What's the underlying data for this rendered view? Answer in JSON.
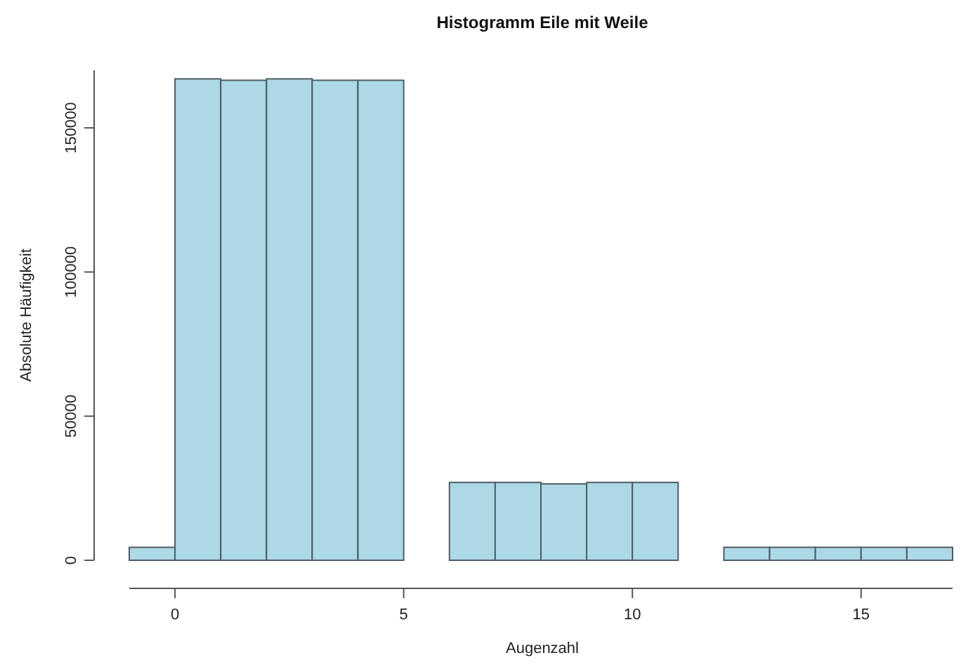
{
  "chart_data": {
    "type": "histogram",
    "title": "Histogramm Eile mit Weile",
    "xlabel": "Augenzahl",
    "ylabel": "Absolute Häufigkeit",
    "bins": [
      -1,
      0,
      1,
      2,
      3,
      4,
      5,
      6,
      7,
      8,
      9,
      10,
      11,
      12,
      13,
      14,
      15,
      16,
      17
    ],
    "values": [
      4500,
      167000,
      166500,
      167000,
      166500,
      166500,
      0,
      27000,
      27000,
      26500,
      27000,
      27000,
      0,
      4500,
      4500,
      4500,
      4500,
      4500
    ],
    "color": "#add8e6",
    "xlim": [
      -1,
      17
    ],
    "ylim": [
      0,
      170000
    ],
    "xticks": [
      0,
      5,
      10,
      15
    ],
    "yticks": [
      0,
      50000,
      100000,
      150000
    ],
    "grid": false
  }
}
